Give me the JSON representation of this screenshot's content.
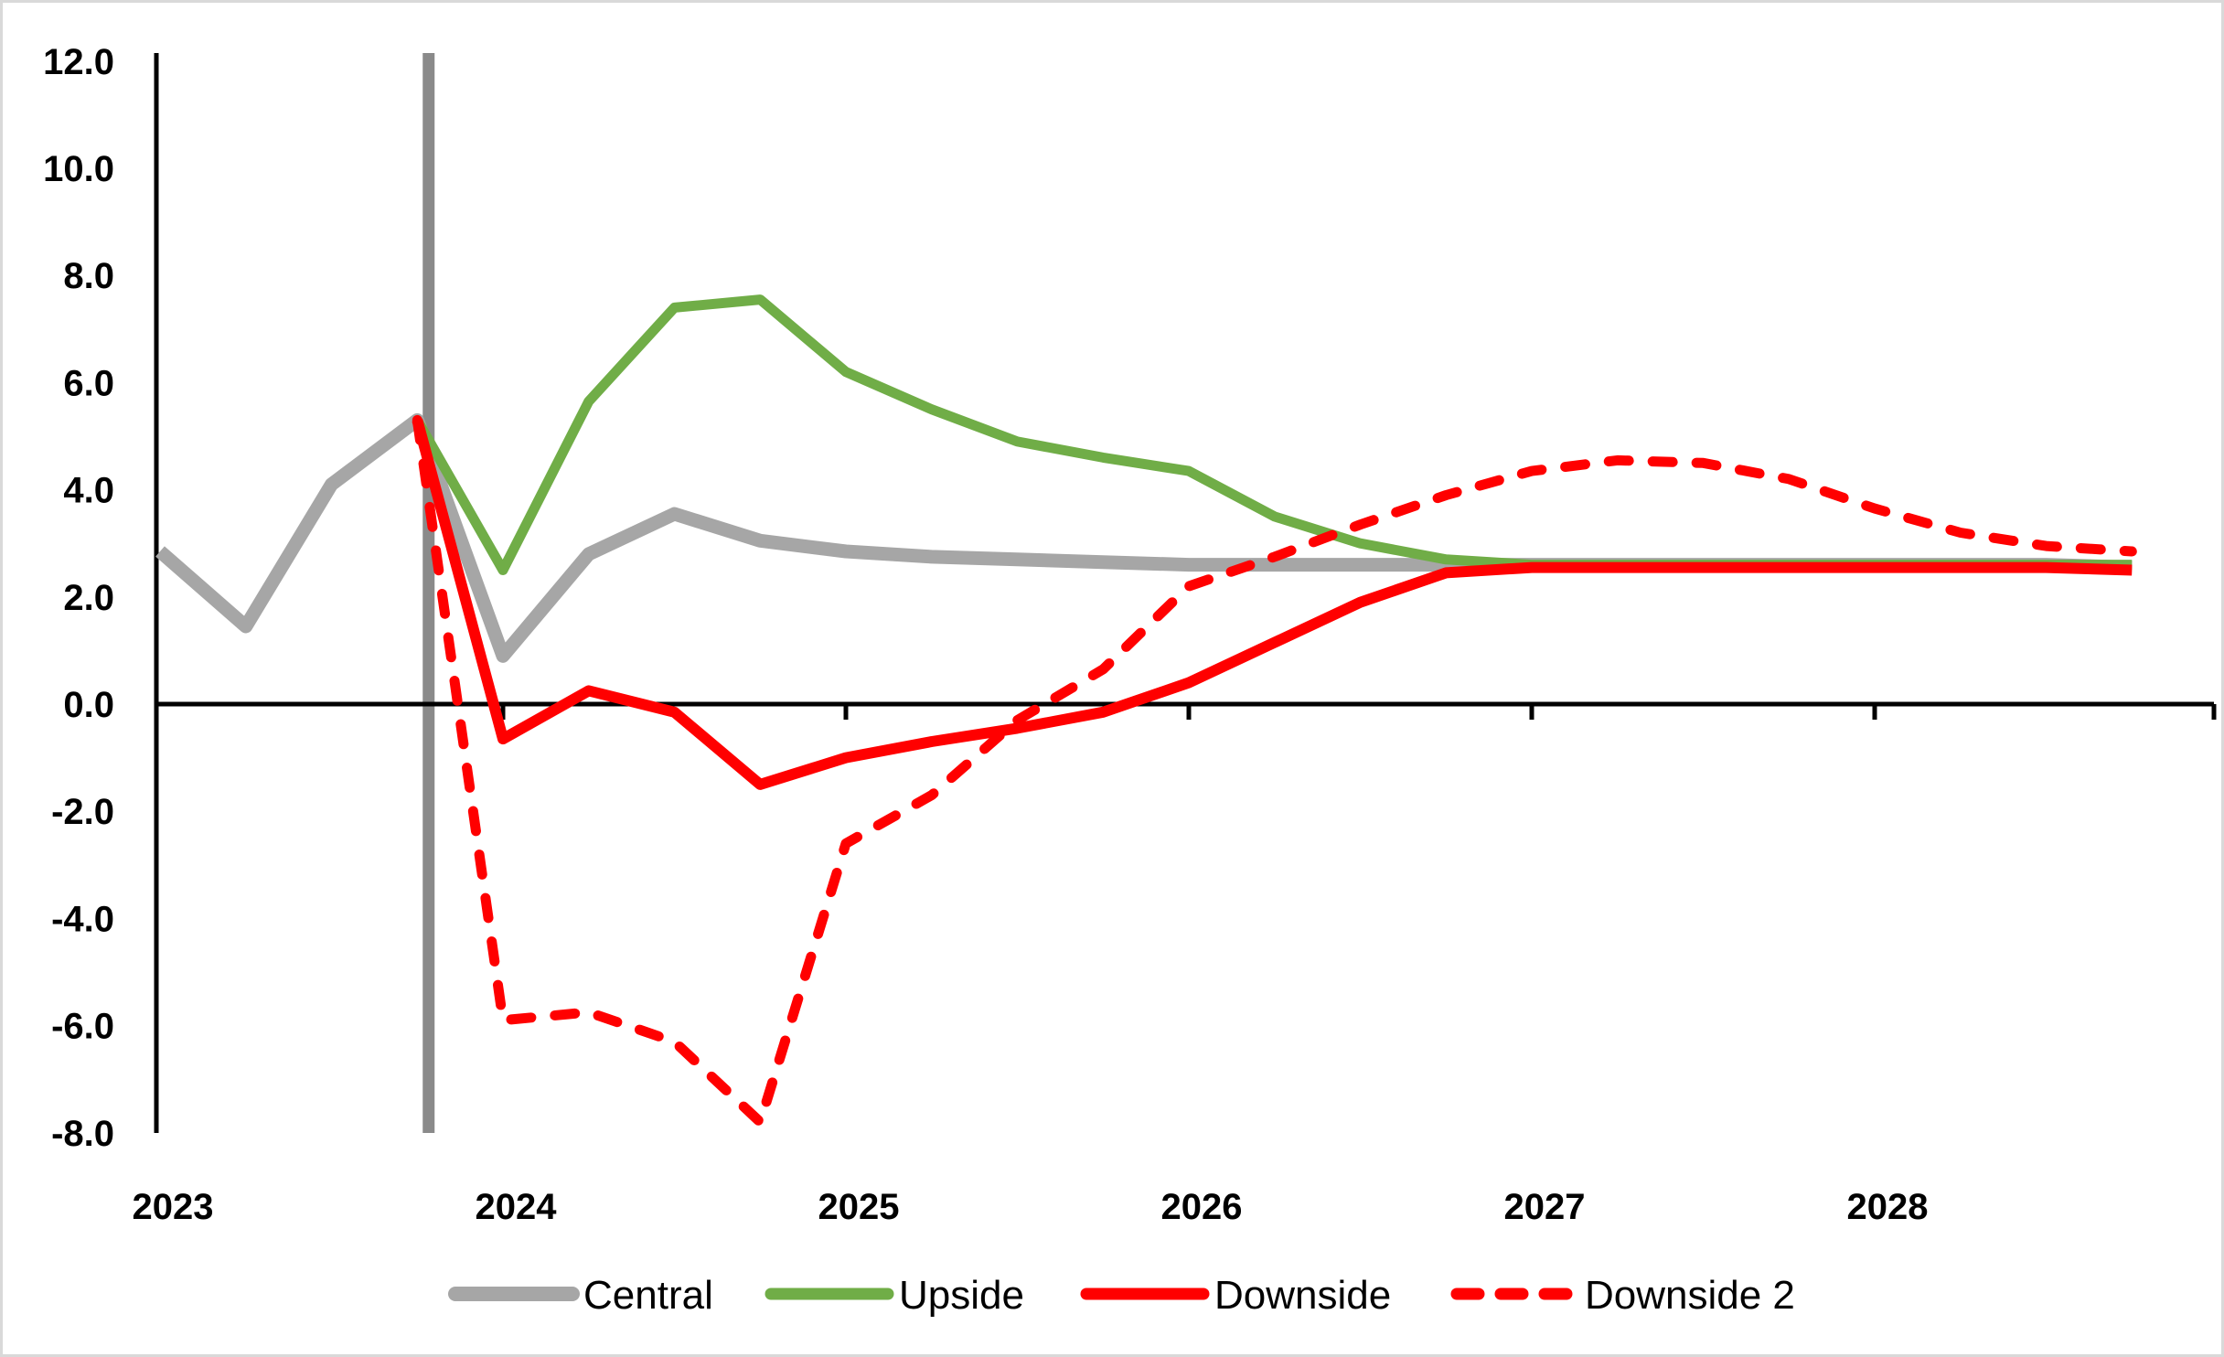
{
  "chart_data": {
    "type": "line",
    "title": "",
    "description": "Quarterly scenario projections with a vertical forecast-start marker after 2023Q4",
    "x_axis": {
      "labels": [
        "2023",
        "2024",
        "2025",
        "2026",
        "2027",
        "2028"
      ],
      "periods": [
        "2023Q1",
        "2023Q2",
        "2023Q3",
        "2023Q4",
        "2024Q1",
        "2024Q2",
        "2024Q3",
        "2024Q4",
        "2025Q1",
        "2025Q2",
        "2025Q3",
        "2025Q4",
        "2026Q1",
        "2026Q2",
        "2026Q3",
        "2026Q4",
        "2027Q1",
        "2027Q2",
        "2027Q3",
        "2027Q4",
        "2028Q1",
        "2028Q2",
        "2028Q3",
        "2028Q4"
      ]
    },
    "y_axis": {
      "tick_labels": [
        "12.0",
        "10.0",
        "8.0",
        "6.0",
        "4.0",
        "2.0",
        "0.0",
        "-2.0",
        "-4.0",
        "-6.0",
        "-8.0"
      ],
      "min": -8.0,
      "max": 12.0,
      "step": 2.0
    },
    "grid": "off",
    "legend_position": "bottom",
    "forecast_marker": {
      "period": "2023Q4",
      "color": "#8a8a8a"
    },
    "colors": {
      "central": "#a6a6a6",
      "upside": "#70ad47",
      "downside": "#ff0000",
      "downside2": "#ff0000",
      "axis": "#000000"
    },
    "series": [
      {
        "name": "Central",
        "color": "#a6a6a6",
        "style": "solid",
        "width": 15,
        "values": [
          2.85,
          1.45,
          4.1,
          5.3,
          0.9,
          2.8,
          3.55,
          3.05,
          2.85,
          2.75,
          2.7,
          2.65,
          2.6,
          2.6,
          2.6,
          2.6,
          2.6,
          2.6,
          2.6,
          2.6,
          2.6,
          2.6,
          2.6,
          2.55
        ]
      },
      {
        "name": "Upside",
        "color": "#70ad47",
        "style": "solid",
        "width": 11,
        "values": [
          null,
          null,
          null,
          5.3,
          2.5,
          5.65,
          7.4,
          7.55,
          6.2,
          5.5,
          4.9,
          4.6,
          4.35,
          3.5,
          3.0,
          2.7,
          2.6,
          2.6,
          2.6,
          2.6,
          2.6,
          2.6,
          2.6,
          2.6
        ]
      },
      {
        "name": "Downside",
        "color": "#ff0000",
        "style": "solid",
        "width": 12,
        "values": [
          null,
          null,
          null,
          5.3,
          -0.65,
          0.25,
          -0.15,
          -1.5,
          -1.0,
          -0.7,
          -0.45,
          -0.15,
          0.4,
          1.15,
          1.9,
          2.45,
          2.55,
          2.55,
          2.55,
          2.55,
          2.55,
          2.55,
          2.55,
          2.5
        ]
      },
      {
        "name": "Downside 2",
        "color": "#ff0000",
        "style": "dashed",
        "width": 11,
        "values": [
          null,
          null,
          null,
          5.3,
          -5.9,
          -5.75,
          -6.3,
          -7.8,
          -2.6,
          -1.7,
          -0.3,
          0.65,
          2.2,
          2.75,
          3.35,
          3.9,
          4.35,
          4.55,
          4.5,
          4.2,
          3.65,
          3.2,
          2.95,
          2.85
        ]
      }
    ],
    "legend": [
      "Central",
      "Upside",
      "Downside",
      "Downside 2"
    ]
  }
}
